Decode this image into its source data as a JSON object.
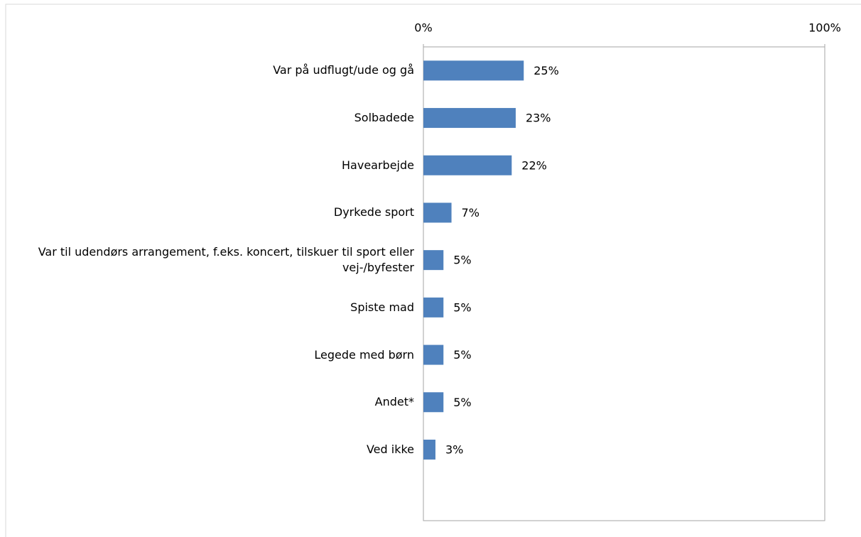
{
  "chart_data": {
    "type": "bar",
    "orientation": "horizontal",
    "categories": [
      "Var på udflugt/ude og gå",
      "Solbadede",
      "Havearbejde",
      "Dyrkede sport",
      "Var til udendørs arrangement, f.eks. koncert, tilskuer til sport eller vej-/byfester",
      "Spiste mad",
      "Legede med børn",
      "Andet*",
      "Ved ikke"
    ],
    "values": [
      25,
      23,
      22,
      7,
      5,
      5,
      5,
      5,
      3
    ],
    "value_labels": [
      "25%",
      "23%",
      "22%",
      "7%",
      "5%",
      "5%",
      "5%",
      "5%",
      "3%"
    ],
    "color": "#4f81bd",
    "xlim": [
      0,
      100
    ],
    "xticks": [
      {
        "value": 0,
        "label": "0%"
      },
      {
        "value": 100,
        "label": "100%"
      }
    ],
    "grid": false
  }
}
